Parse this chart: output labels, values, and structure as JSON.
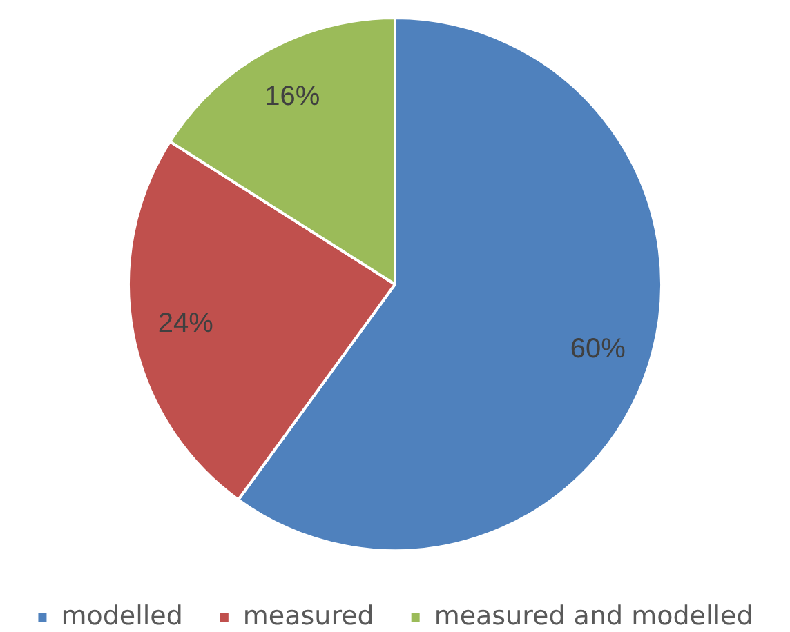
{
  "chart_data": {
    "type": "pie",
    "categories": [
      "modelled",
      "measured",
      "measured and modelled"
    ],
    "values": [
      60,
      24,
      16
    ],
    "colors": [
      "#4f81bd",
      "#c0504d",
      "#9bbb59"
    ],
    "value_labels": [
      "60%",
      "24%",
      "16%"
    ],
    "legend": "bottom"
  }
}
